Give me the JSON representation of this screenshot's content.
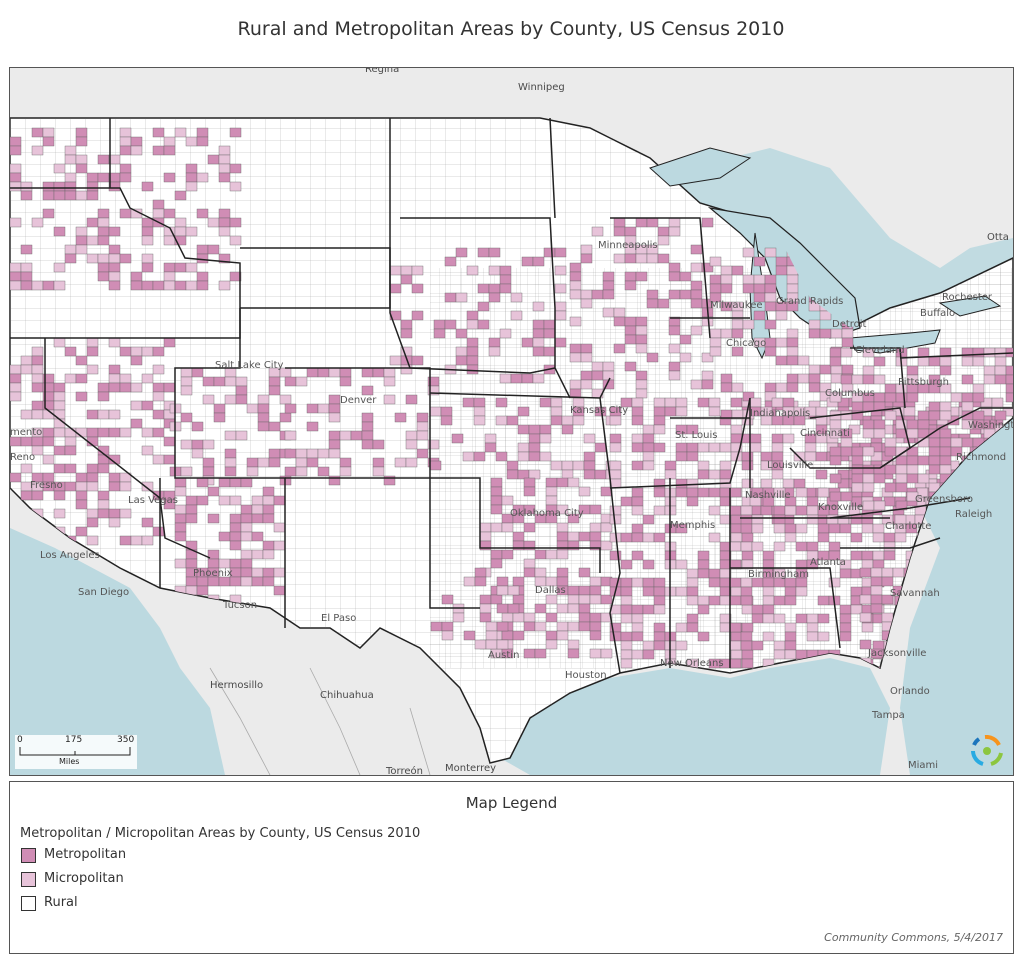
{
  "title": "Rural and Metropolitan Areas by County, US Census 2010",
  "colors": {
    "metropolitan": "#d08db5",
    "micropolitan": "#e7c3d9",
    "rural": "#ffffff",
    "water": "#bcd9e0",
    "land_foreign": "#ebebeb",
    "state_border": "#222222",
    "county_border": "#555555"
  },
  "map": {
    "places": [
      {
        "id": "regina",
        "name": "Regina"
      },
      {
        "id": "winnipeg",
        "name": "Winnipeg"
      },
      {
        "id": "ottawa",
        "name": "Otta"
      },
      {
        "id": "minneapolis",
        "name": "Minneapolis"
      },
      {
        "id": "milwaukee",
        "name": "Milwaukee"
      },
      {
        "id": "grand-rapids",
        "name": "Grand Rapids"
      },
      {
        "id": "detroit",
        "name": "Detroit"
      },
      {
        "id": "chicago",
        "name": "Chicago"
      },
      {
        "id": "cleveland",
        "name": "Cleveland"
      },
      {
        "id": "buffalo",
        "name": "Buffalo"
      },
      {
        "id": "rochester",
        "name": "Rochester"
      },
      {
        "id": "pittsburgh",
        "name": "Pittsburgh"
      },
      {
        "id": "columbus",
        "name": "Columbus"
      },
      {
        "id": "indianapolis",
        "name": "Indianapolis"
      },
      {
        "id": "cincinnati",
        "name": "Cincinnati"
      },
      {
        "id": "louisville",
        "name": "Louisville"
      },
      {
        "id": "washington",
        "name": "Washington"
      },
      {
        "id": "richmond",
        "name": "Richmond"
      },
      {
        "id": "raleigh",
        "name": "Raleigh"
      },
      {
        "id": "greensboro",
        "name": "Greensboro"
      },
      {
        "id": "charlotte",
        "name": "Charlotte"
      },
      {
        "id": "knoxville",
        "name": "Knoxville"
      },
      {
        "id": "nashville",
        "name": "Nashville"
      },
      {
        "id": "memphis",
        "name": "Memphis"
      },
      {
        "id": "atlanta",
        "name": "Atlanta"
      },
      {
        "id": "birmingham",
        "name": "Birmingham"
      },
      {
        "id": "savannah",
        "name": "Savannah"
      },
      {
        "id": "jacksonville",
        "name": "Jacksonville"
      },
      {
        "id": "orlando",
        "name": "Orlando"
      },
      {
        "id": "tampa",
        "name": "Tampa"
      },
      {
        "id": "miami",
        "name": "Miami"
      },
      {
        "id": "new-orleans",
        "name": "New Orleans"
      },
      {
        "id": "kansas-city",
        "name": "Kansas City"
      },
      {
        "id": "st-louis",
        "name": "St. Louis"
      },
      {
        "id": "oklahoma-city",
        "name": "Oklahoma City"
      },
      {
        "id": "dallas",
        "name": "Dallas"
      },
      {
        "id": "austin",
        "name": "Austin"
      },
      {
        "id": "houston",
        "name": "Houston"
      },
      {
        "id": "denver",
        "name": "Denver"
      },
      {
        "id": "salt-lake-city",
        "name": "Salt Lake City"
      },
      {
        "id": "las-vegas",
        "name": "Las Vegas"
      },
      {
        "id": "phoenix",
        "name": "Phoenix"
      },
      {
        "id": "tucson",
        "name": "Tucson"
      },
      {
        "id": "el-paso",
        "name": "El Paso"
      },
      {
        "id": "los-angeles",
        "name": "Los Angeles"
      },
      {
        "id": "san-diego",
        "name": "San Diego"
      },
      {
        "id": "fresno",
        "name": "Fresno"
      },
      {
        "id": "sacramento",
        "name": "mento"
      },
      {
        "id": "reno",
        "name": "Reno"
      },
      {
        "id": "hermosillo",
        "name": "Hermosillo"
      },
      {
        "id": "chihuahua",
        "name": "Chihuahua"
      },
      {
        "id": "torreon",
        "name": "Torreón"
      },
      {
        "id": "monterrey",
        "name": "Monterrey"
      }
    ],
    "scale": {
      "ticks": [
        "0",
        "175",
        "350"
      ],
      "unit": "Miles"
    }
  },
  "legend": {
    "title": "Map Legend",
    "subtitle": "Metropolitan / Micropolitan Areas by County, US Census 2010",
    "items": [
      {
        "key": "metropolitan",
        "label": "Metropolitan"
      },
      {
        "key": "micropolitan",
        "label": "Micropolitan"
      },
      {
        "key": "rural",
        "label": "Rural"
      }
    ]
  },
  "credit": "Community Commons, 5/4/2017"
}
